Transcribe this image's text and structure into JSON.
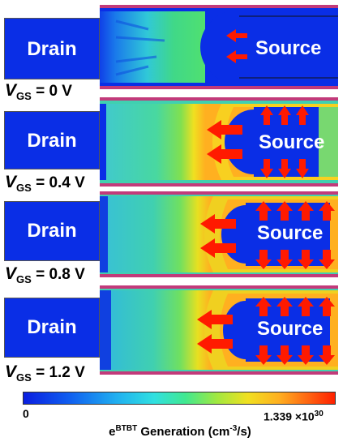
{
  "colors": {
    "low": "#0a2ee6",
    "mid": "#35e0c0",
    "high": "#ff2a00",
    "arrow": "#ff1a00",
    "rail": "#9a2a6a"
  },
  "panels": [
    {
      "drain_label": "Drain",
      "source_label": "Source",
      "vgs_prefix": "V",
      "vgs_sub": "GS",
      "vgs_value": " = 0 V"
    },
    {
      "drain_label": "Drain",
      "source_label": "Source",
      "vgs_prefix": "V",
      "vgs_sub": "GS",
      "vgs_value": " = 0.4 V"
    },
    {
      "drain_label": "Drain",
      "source_label": "Source",
      "vgs_prefix": "V",
      "vgs_sub": "GS",
      "vgs_value": " = 0.8 V"
    },
    {
      "drain_label": "Drain",
      "source_label": "Source",
      "vgs_prefix": "V",
      "vgs_sub": "GS",
      "vgs_value": " = 1.2 V"
    }
  ],
  "colorbar": {
    "min_label": "0",
    "max_label": "1.339 ×10",
    "max_exp": "30",
    "title_prefix": "e",
    "title_sup": "BTBT",
    "title_mid": " Generation (cm",
    "title_sup2": "-3",
    "title_suffix": "/s)"
  }
}
